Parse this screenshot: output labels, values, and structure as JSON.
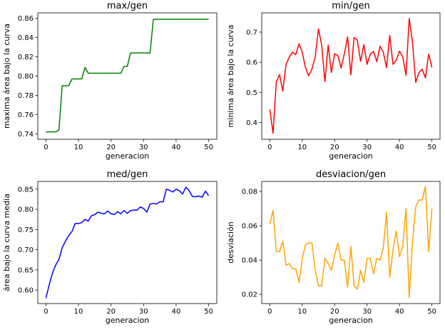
{
  "chart_data": [
    {
      "type": "line",
      "title": "max/gen",
      "xlabel": "generacion",
      "ylabel": "maxima área bajo la curva",
      "xlim": [
        -2.5,
        52.5
      ],
      "ylim": [
        0.7343,
        0.8657
      ],
      "xticks": [
        0,
        10,
        20,
        30,
        40,
        50
      ],
      "yticks": [
        0.74,
        0.76,
        0.78,
        0.8,
        0.82,
        0.84,
        0.86
      ],
      "ytick_labels": [
        "0.74",
        "0.76",
        "0.78",
        "0.80",
        "0.82",
        "0.84",
        "0.86"
      ],
      "color": "#008000",
      "series": [
        {
          "x": [
            0,
            1,
            2,
            3,
            4,
            5,
            6,
            7,
            8,
            9,
            10,
            11,
            12,
            13,
            14,
            15,
            16,
            17,
            18,
            19,
            20,
            21,
            22,
            23,
            24,
            25,
            26,
            27,
            28,
            29,
            30,
            31,
            32,
            33,
            34,
            35,
            36,
            37,
            38,
            39,
            40,
            41,
            42,
            43,
            44,
            45,
            46,
            47,
            48,
            49,
            50
          ],
          "values": [
            0.742,
            0.742,
            0.742,
            0.742,
            0.744,
            0.79,
            0.79,
            0.79,
            0.797,
            0.797,
            0.797,
            0.797,
            0.809,
            0.803,
            0.803,
            0.803,
            0.803,
            0.803,
            0.803,
            0.803,
            0.803,
            0.803,
            0.803,
            0.803,
            0.81,
            0.81,
            0.824,
            0.824,
            0.824,
            0.824,
            0.824,
            0.824,
            0.824,
            0.859,
            0.859,
            0.859,
            0.859,
            0.859,
            0.859,
            0.859,
            0.859,
            0.859,
            0.859,
            0.859,
            0.859,
            0.859,
            0.859,
            0.859,
            0.859,
            0.859,
            0.859
          ]
        }
      ]
    },
    {
      "type": "line",
      "title": "min/gen",
      "xlabel": "generacion",
      "ylabel": "minima área bajo la curva",
      "xlim": [
        -2.5,
        52.5
      ],
      "ylim": [
        0.344,
        0.764
      ],
      "xticks": [
        0,
        10,
        20,
        30,
        40,
        50
      ],
      "yticks": [
        0.4,
        0.5,
        0.6,
        0.7
      ],
      "ytick_labels": [
        "0.4",
        "0.5",
        "0.6",
        "0.7"
      ],
      "color": "#ff0000",
      "series": [
        {
          "x": [
            0,
            1,
            2,
            3,
            4,
            5,
            6,
            7,
            8,
            9,
            10,
            11,
            12,
            13,
            14,
            15,
            16,
            17,
            18,
            19,
            20,
            21,
            22,
            23,
            24,
            25,
            26,
            27,
            28,
            29,
            30,
            31,
            32,
            33,
            34,
            35,
            36,
            37,
            38,
            39,
            40,
            41,
            42,
            43,
            44,
            45,
            46,
            47,
            48,
            49,
            50
          ],
          "values": [
            0.443,
            0.364,
            0.535,
            0.559,
            0.504,
            0.592,
            0.617,
            0.633,
            0.625,
            0.661,
            0.633,
            0.582,
            0.555,
            0.578,
            0.617,
            0.711,
            0.657,
            0.535,
            0.657,
            0.566,
            0.628,
            0.622,
            0.581,
            0.629,
            0.684,
            0.558,
            0.682,
            0.673,
            0.603,
            0.658,
            0.593,
            0.627,
            0.636,
            0.602,
            0.653,
            0.634,
            0.582,
            0.689,
            0.593,
            0.607,
            0.637,
            0.618,
            0.557,
            0.745,
            0.668,
            0.533,
            0.565,
            0.577,
            0.548,
            0.627,
            0.583
          ]
        }
      ]
    },
    {
      "type": "line",
      "title": "med/gen",
      "xlabel": "generacion",
      "ylabel": "área bajo la curva media",
      "xlim": [
        -2.5,
        52.5
      ],
      "ylim": [
        0.5665,
        0.8691
      ],
      "xticks": [
        0,
        10,
        20,
        30,
        40,
        50
      ],
      "yticks": [
        0.6,
        0.65,
        0.7,
        0.75,
        0.8,
        0.85
      ],
      "ytick_labels": [
        "0.60",
        "0.65",
        "0.70",
        "0.75",
        "0.80",
        "0.85"
      ],
      "color": "#0000ff",
      "series": [
        {
          "x": [
            0,
            1,
            2,
            3,
            4,
            5,
            6,
            7,
            8,
            9,
            10,
            11,
            12,
            13,
            14,
            15,
            16,
            17,
            18,
            19,
            20,
            21,
            22,
            23,
            24,
            25,
            26,
            27,
            28,
            29,
            30,
            31,
            32,
            33,
            34,
            35,
            36,
            37,
            38,
            39,
            40,
            41,
            42,
            43,
            44,
            45,
            46,
            47,
            48,
            49,
            50
          ],
          "values": [
            0.58,
            0.613,
            0.642,
            0.662,
            0.676,
            0.705,
            0.721,
            0.735,
            0.745,
            0.765,
            0.765,
            0.767,
            0.775,
            0.771,
            0.784,
            0.787,
            0.793,
            0.79,
            0.789,
            0.796,
            0.789,
            0.787,
            0.794,
            0.789,
            0.797,
            0.79,
            0.797,
            0.798,
            0.798,
            0.806,
            0.802,
            0.793,
            0.813,
            0.815,
            0.813,
            0.819,
            0.818,
            0.85,
            0.847,
            0.843,
            0.85,
            0.846,
            0.838,
            0.855,
            0.846,
            0.832,
            0.831,
            0.833,
            0.83,
            0.845,
            0.834
          ]
        }
      ]
    },
    {
      "type": "line",
      "title": "desviacion/gen",
      "xlabel": "generacion",
      "ylabel": "desviación",
      "xlim": [
        -2.5,
        52.5
      ],
      "ylim": [
        0.01465,
        0.08585
      ],
      "xticks": [
        0,
        10,
        20,
        30,
        40,
        50
      ],
      "yticks": [
        0.02,
        0.04,
        0.06,
        0.08
      ],
      "ytick_labels": [
        "0.02",
        "0.04",
        "0.06",
        "0.08"
      ],
      "color": "#ffa500",
      "series": [
        {
          "x": [
            0,
            1,
            2,
            3,
            4,
            5,
            6,
            7,
            8,
            9,
            10,
            11,
            12,
            13,
            14,
            15,
            16,
            17,
            18,
            19,
            20,
            21,
            22,
            23,
            24,
            25,
            26,
            27,
            28,
            29,
            30,
            31,
            32,
            33,
            34,
            35,
            36,
            37,
            38,
            39,
            40,
            41,
            42,
            43,
            44,
            45,
            46,
            47,
            48,
            49,
            50
          ],
          "values": [
            0.061,
            0.069,
            0.045,
            0.045,
            0.051,
            0.037,
            0.038,
            0.035,
            0.035,
            0.027,
            0.041,
            0.049,
            0.05,
            0.05,
            0.034,
            0.025,
            0.025,
            0.041,
            0.038,
            0.034,
            0.043,
            0.05,
            0.04,
            0.04,
            0.024,
            0.048,
            0.025,
            0.023,
            0.034,
            0.027,
            0.041,
            0.041,
            0.032,
            0.041,
            0.04,
            0.047,
            0.068,
            0.03,
            0.046,
            0.057,
            0.042,
            0.048,
            0.07,
            0.018,
            0.05,
            0.071,
            0.075,
            0.075,
            0.083,
            0.045,
            0.07
          ]
        }
      ]
    }
  ]
}
